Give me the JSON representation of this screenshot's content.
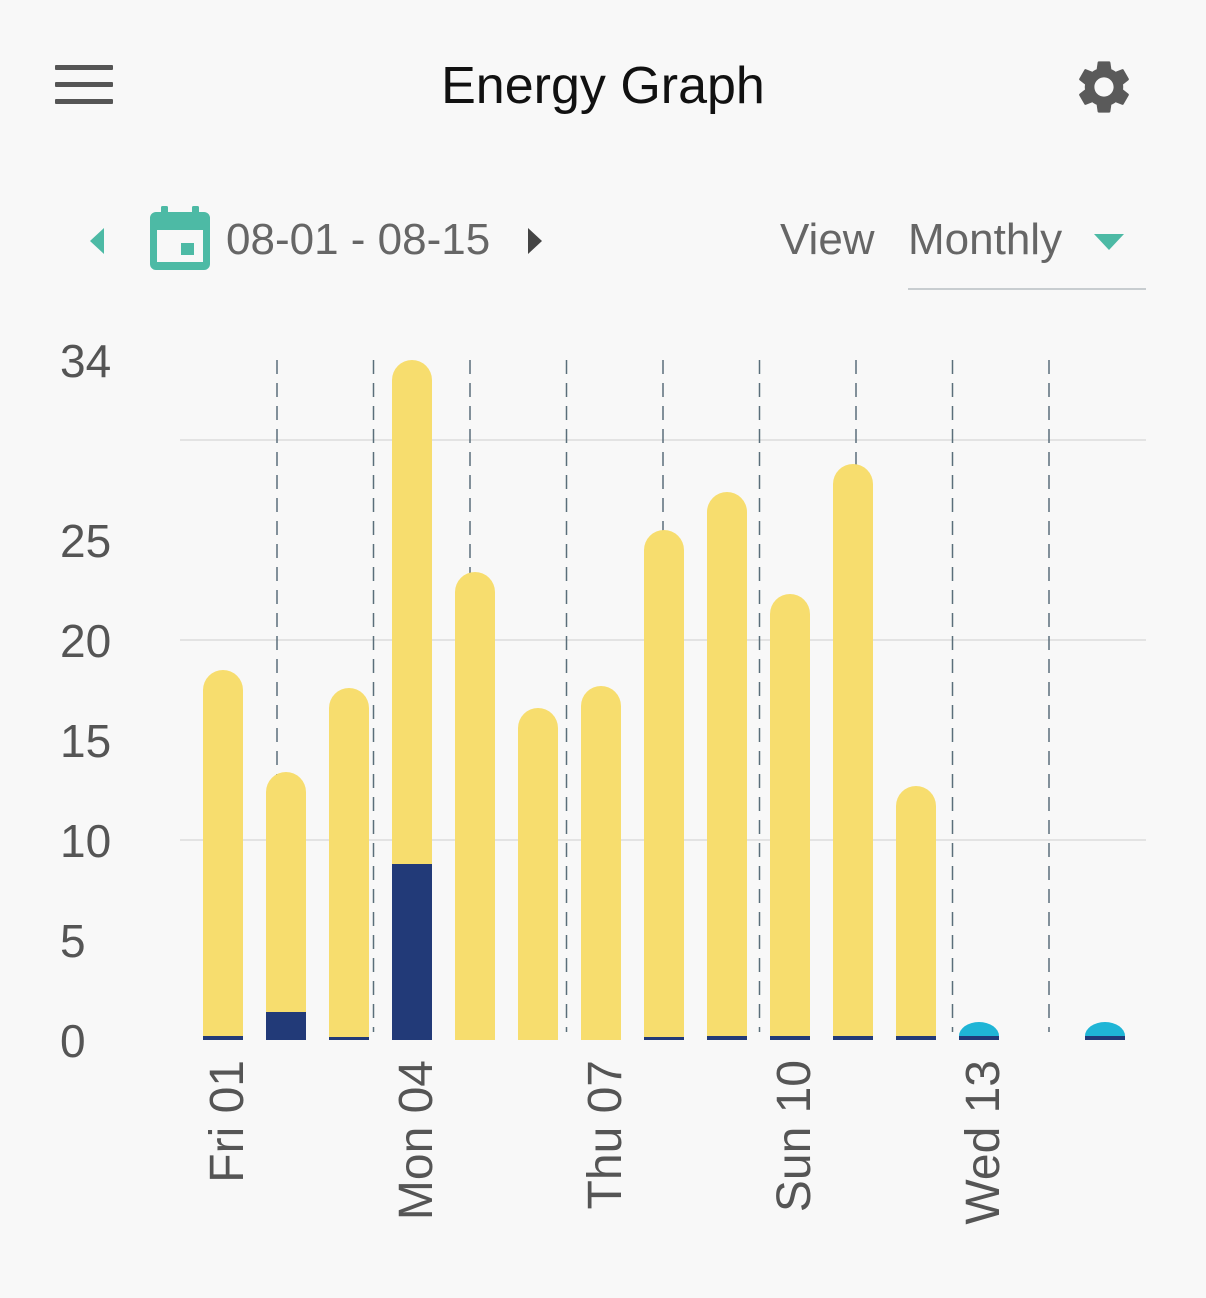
{
  "header": {
    "title": "Energy Graph",
    "menu_icon": "menu-icon",
    "settings_icon": "gear-icon"
  },
  "toolbar": {
    "prev_icon": "chevron-left-icon",
    "next_icon": "chevron-right-icon",
    "calendar_icon": "calendar-icon",
    "date_range": "08-01 - 08-15",
    "view_label": "View",
    "view_value": "Monthly"
  },
  "colors": {
    "accent": "#4dbaa5",
    "bar_main": "#f7dd6e",
    "bar_secondary": "#223a78",
    "bar_partial": "#1fb5d6",
    "gridline": "#e3e3e3",
    "divider": "#5a6e7a"
  },
  "chart_data": {
    "type": "bar",
    "stacked": true,
    "categories": [
      "Fri 01",
      "",
      "",
      "Mon 04",
      "",
      "",
      "Thu 07",
      "",
      "",
      "Sun 10",
      "",
      "",
      "Wed 13",
      "",
      ""
    ],
    "series": [
      {
        "name": "",
        "values": [
          0.2,
          1.4,
          0.1,
          8.8,
          0,
          0,
          0,
          0.1,
          0.2,
          0.2,
          0.2,
          0.2,
          0.2,
          0,
          0.2
        ]
      },
      {
        "name": "",
        "values": [
          18.3,
          12.0,
          17.5,
          25.2,
          23.4,
          16.6,
          17.7,
          25.4,
          27.2,
          22.1,
          28.6,
          12.5,
          0,
          0,
          0
        ]
      },
      {
        "name": "",
        "values": [
          0,
          0,
          0,
          0,
          0,
          0,
          0,
          0,
          0,
          0,
          0,
          0,
          0.7,
          0,
          0.7
        ]
      }
    ],
    "ylim": [
      0,
      34
    ],
    "yticks": [
      "0",
      "5",
      "10",
      "15",
      "20",
      "25",
      "34"
    ],
    "grid": true
  }
}
